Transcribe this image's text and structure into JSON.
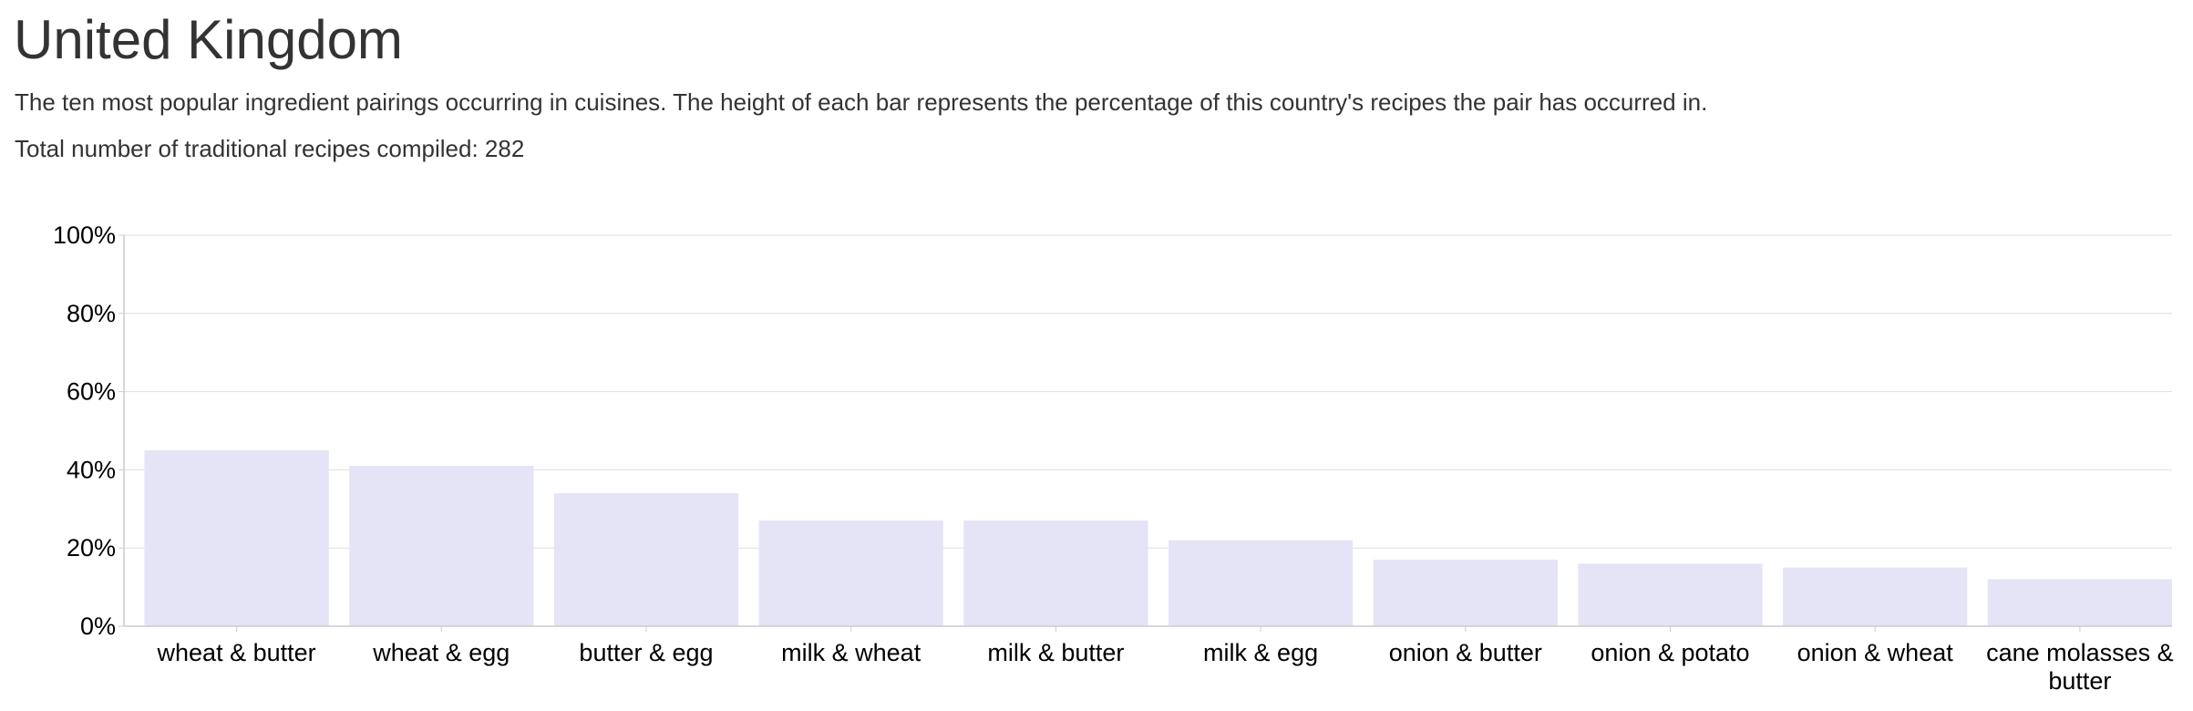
{
  "header": {
    "title": "United Kingdom",
    "description": "The ten most popular ingredient pairings occurring in cuisines. The height of each bar represents the percentage of this country's recipes the pair has occurred in.",
    "recipe_count": "Total number of traditional recipes compiled: 282"
  },
  "colors": {
    "bar": "#e4e4f6",
    "grid": "#dddddd",
    "axis": "#cccccc",
    "text": "#333333"
  },
  "chart_data": {
    "type": "bar",
    "categories": [
      "wheat & butter",
      "wheat & egg",
      "butter & egg",
      "milk & wheat",
      "milk & butter",
      "milk & egg",
      "onion & butter",
      "onion & potato",
      "onion & wheat",
      "cane molasses & butter"
    ],
    "values": [
      45,
      41,
      34,
      27,
      27,
      22,
      17,
      16,
      15,
      12
    ],
    "ylim": [
      0,
      100
    ],
    "yticks": [
      0,
      20,
      40,
      60,
      80,
      100
    ],
    "ytick_labels": [
      "0%",
      "20%",
      "40%",
      "60%",
      "80%",
      "100%"
    ],
    "grid": true,
    "xlabel": "",
    "ylabel": ""
  }
}
